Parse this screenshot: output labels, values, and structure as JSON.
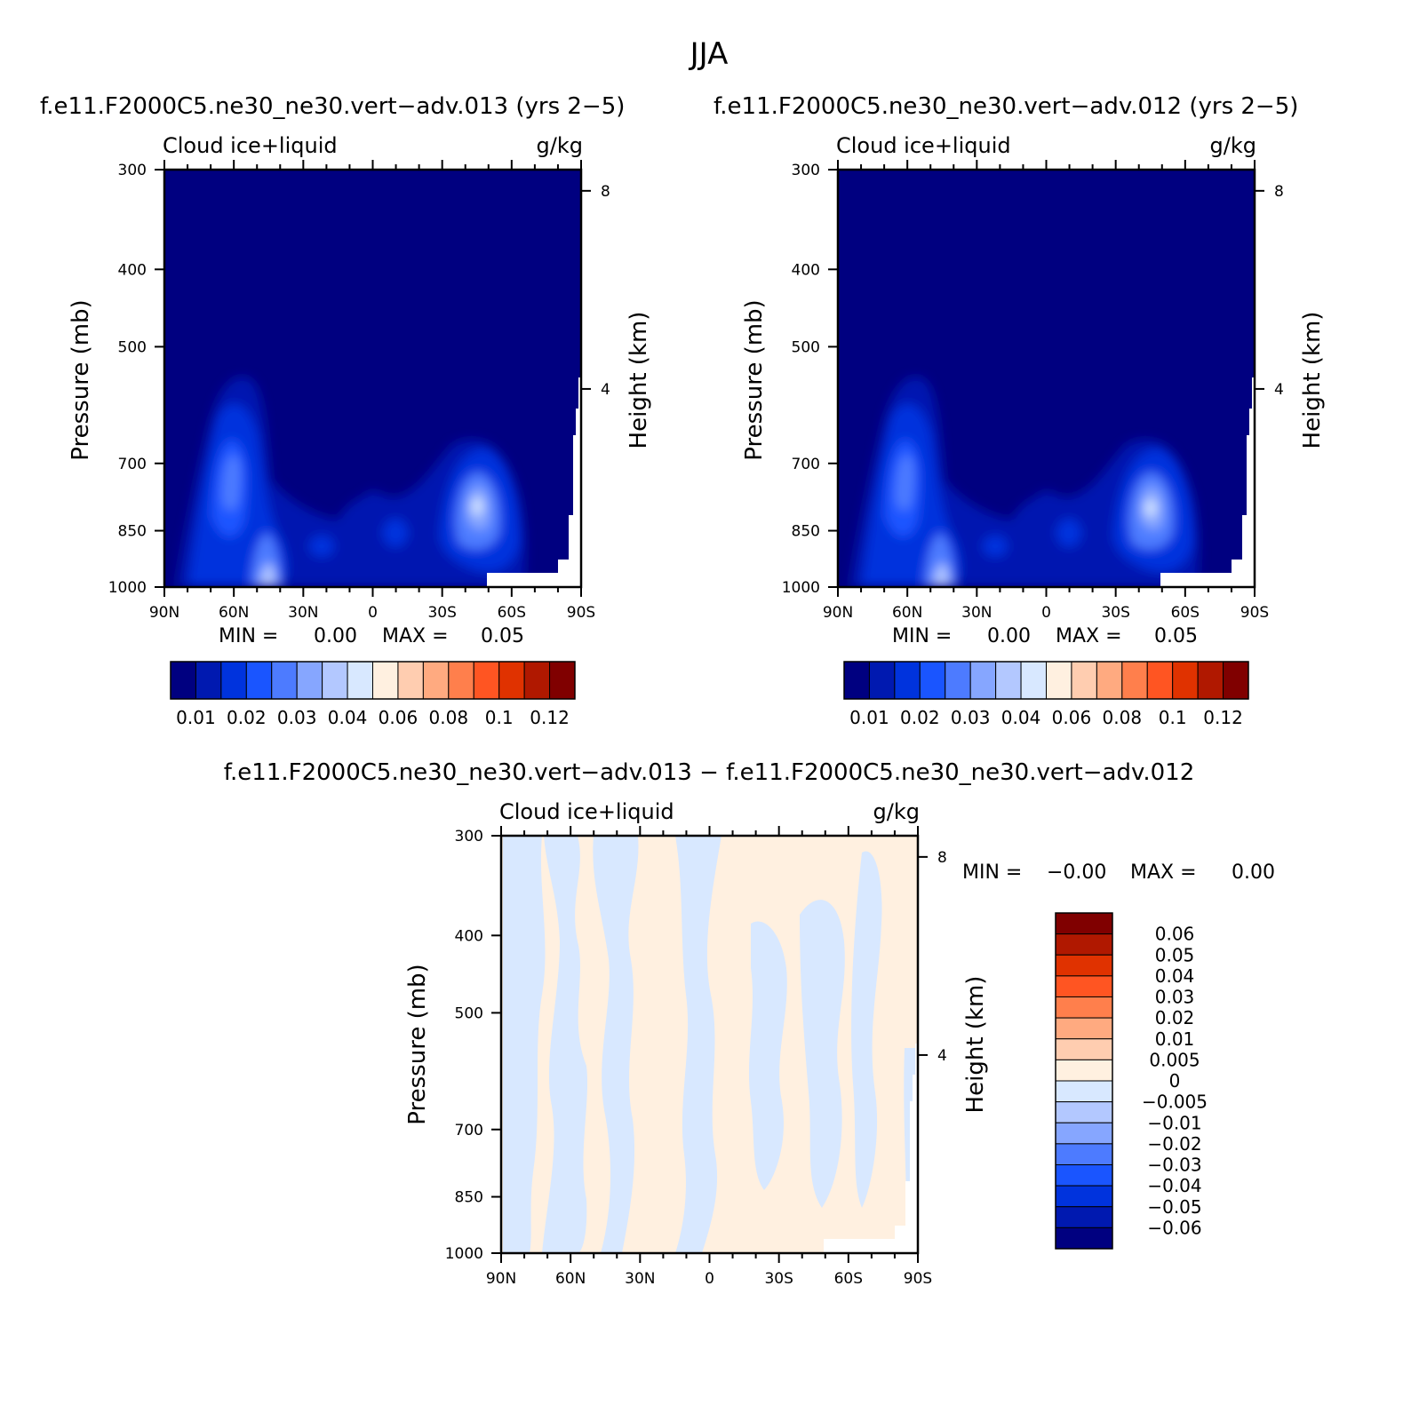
{
  "figure_title": "JJA",
  "diff_title": "f.e11.F2000C5.ne30_ne30.vert−adv.013 − f.e11.F2000C5.ne30_ne30.vert−adv.012",
  "panels": [
    {
      "title": "f.e11.F2000C5.ne30_ne30.vert−adv.013 (yrs 2−5)",
      "variable": "Cloud ice+liquid",
      "units": "g/kg",
      "ylabel": "Pressure (mb)",
      "ylabel_right": "Height (km)",
      "min_label": "MIN =",
      "min_value": "0.00",
      "max_label": "MAX =",
      "max_value": "0.05"
    },
    {
      "title": "f.e11.F2000C5.ne30_ne30.vert−adv.012 (yrs 2−5)",
      "variable": "Cloud ice+liquid",
      "units": "g/kg",
      "ylabel": "Pressure (mb)",
      "ylabel_right": "Height (km)",
      "min_label": "MIN =",
      "min_value": "0.00",
      "max_label": "MAX =",
      "max_value": "0.05"
    },
    {
      "title": "",
      "variable": "Cloud ice+liquid",
      "units": "g/kg",
      "ylabel": "Pressure (mb)",
      "ylabel_right": "Height (km)",
      "min_label": "MIN =",
      "min_value": "−0.00",
      "max_label": "MAX =",
      "max_value": "0.00"
    }
  ],
  "axes": {
    "x_ticks": [
      "90N",
      "60N",
      "30N",
      "0",
      "30S",
      "60S",
      "90S"
    ],
    "y_ticks": [
      "300",
      "400",
      "500",
      "700",
      "850",
      "1000"
    ],
    "y_tick_values": [
      300,
      400,
      500,
      700,
      850,
      1000
    ],
    "height_ticks": [
      "8",
      "4"
    ],
    "height_tick_km": [
      8,
      4
    ]
  },
  "colorbar_top": {
    "labels": [
      "0.01",
      "0.02",
      "0.03",
      "0.04",
      "0.06",
      "0.08",
      "0.1",
      "0.12"
    ],
    "colors": [
      "#000080",
      "#0019b0",
      "#0033dd",
      "#1a55ff",
      "#4d7bff",
      "#86a6ff",
      "#b3c8ff",
      "#d8e8ff",
      "#fff0e0",
      "#ffcdb0",
      "#ffaa80",
      "#ff7f4c",
      "#ff5522",
      "#e03200",
      "#b01800",
      "#800000"
    ]
  },
  "colorbar_diff": {
    "labels": [
      "0.06",
      "0.05",
      "0.04",
      "0.03",
      "0.02",
      "0.01",
      "0.005",
      "0",
      "−0.005",
      "−0.01",
      "−0.02",
      "−0.03",
      "−0.04",
      "−0.05",
      "−0.06"
    ],
    "colors": [
      "#800000",
      "#b01800",
      "#e03200",
      "#ff5522",
      "#ff7f4c",
      "#ffaa80",
      "#ffcdb0",
      "#fff0e0",
      "#d8e8ff",
      "#b3c8ff",
      "#86a6ff",
      "#4d7bff",
      "#1a55ff",
      "#0033dd",
      "#0019b0",
      "#000080"
    ]
  },
  "chart_data": [
    {
      "type": "heatmap",
      "title": "f.e11.F2000C5.ne30_ne30.vert−adv.013 (yrs 2−5)",
      "subtitle": "Cloud ice+liquid",
      "units": "g/kg",
      "xlabel": "",
      "ylabel": "Pressure (mb)",
      "y2label": "Height (km)",
      "xlim": [
        90,
        -90
      ],
      "ylim": [
        1000,
        300
      ],
      "x_ticks": [
        "90N",
        "60N",
        "30N",
        "0",
        "30S",
        "60S",
        "90S"
      ],
      "y_ticks": [
        300,
        400,
        500,
        700,
        850,
        1000
      ],
      "background_level": 0,
      "features": [
        {
          "lat": 61,
          "p_center": 800,
          "p_top": 670,
          "p_bottom": 1000,
          "lat_halfwidth": 11,
          "peak_level": 6
        },
        {
          "lat": 47,
          "p_center": 975,
          "p_top": 870,
          "p_bottom": 1000,
          "lat_halfwidth": 6,
          "peak_level": 7
        },
        {
          "lat": -43,
          "p_center": 855,
          "p_top": 760,
          "p_bottom": 960,
          "lat_halfwidth": 12,
          "peak_level": 7
        },
        {
          "lat": 10,
          "p_center": 900,
          "p_top": 840,
          "p_bottom": 970,
          "lat_halfwidth": 16,
          "peak_level": 2
        }
      ],
      "min": 0.0,
      "max": 0.05
    },
    {
      "type": "heatmap",
      "title": "f.e11.F2000C5.ne30_ne30.vert−adv.012 (yrs 2−5)",
      "subtitle": "Cloud ice+liquid",
      "units": "g/kg",
      "xlabel": "",
      "ylabel": "Pressure (mb)",
      "y2label": "Height (km)",
      "xlim": [
        90,
        -90
      ],
      "ylim": [
        1000,
        300
      ],
      "x_ticks": [
        "90N",
        "60N",
        "30N",
        "0",
        "30S",
        "60S",
        "90S"
      ],
      "y_ticks": [
        300,
        400,
        500,
        700,
        850,
        1000
      ],
      "background_level": 0,
      "features": [
        {
          "lat": 61,
          "p_center": 800,
          "p_top": 670,
          "p_bottom": 1000,
          "lat_halfwidth": 11,
          "peak_level": 6
        },
        {
          "lat": 47,
          "p_center": 975,
          "p_top": 870,
          "p_bottom": 1000,
          "lat_halfwidth": 6,
          "peak_level": 7
        },
        {
          "lat": -43,
          "p_center": 860,
          "p_top": 760,
          "p_bottom": 960,
          "lat_halfwidth": 12,
          "peak_level": 7
        },
        {
          "lat": 10,
          "p_center": 900,
          "p_top": 840,
          "p_bottom": 970,
          "lat_halfwidth": 16,
          "peak_level": 2
        }
      ],
      "min": 0.0,
      "max": 0.05
    },
    {
      "type": "heatmap",
      "title": "f.e11.F2000C5.ne30_ne30.vert−adv.013 − f.e11.F2000C5.ne30_ne30.vert−adv.012",
      "subtitle": "Cloud ice+liquid",
      "units": "g/kg",
      "xlabel": "",
      "ylabel": "Pressure (mb)",
      "y2label": "Height (km)",
      "xlim": [
        90,
        -90
      ],
      "ylim": [
        1000,
        300
      ],
      "x_ticks": [
        "90N",
        "60N",
        "30N",
        "0",
        "30S",
        "60S",
        "90S"
      ],
      "y_ticks": [
        300,
        400,
        500,
        700,
        850,
        1000
      ],
      "levels": [
        "0 to 0.005",
        "-0.005 to 0"
      ],
      "negative_bands_lat": [
        [
          87,
          72
        ],
        [
          60,
          50
        ],
        [
          38,
          28
        ],
        [
          5,
          -1
        ],
        [
          -18,
          -30
        ],
        [
          -42,
          -52
        ],
        [
          -62,
          -70
        ]
      ],
      "min": -0.0,
      "max": 0.0
    }
  ]
}
